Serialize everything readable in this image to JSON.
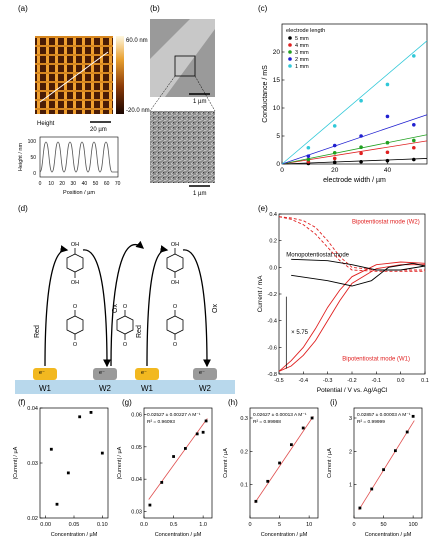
{
  "panel_labels": {
    "a": "(a)",
    "b": "(b)",
    "c": "(c)",
    "d": "(d)",
    "e": "(e)",
    "f": "(f)",
    "g": "(g)",
    "h": "(h)",
    "i": "(i)"
  },
  "panel_a": {
    "image_caption": "Height",
    "scale_bar": "20 µm",
    "colorbar_max": "60.0 nm",
    "colorbar_min": "-20.0 nm",
    "profile_ylabel": "Height / nm",
    "profile_xlabel": "Position / µm",
    "profile_yticks": [
      "0",
      "50",
      "100"
    ],
    "profile_xticks": [
      "0",
      "10",
      "20",
      "30",
      "40",
      "50",
      "60",
      "70"
    ]
  },
  "panel_b": {
    "scale_bar_top": "1 µm",
    "scale_bar_bottom": "1 µm"
  },
  "panel_d": {
    "electrodes": [
      "W1",
      "W2",
      "W1",
      "W2"
    ],
    "red_label": "Red",
    "ox_label": "Ox",
    "electron": "e⁻",
    "molecule_top": "OH",
    "molecule_bottom": "OH",
    "quinone": "O"
  },
  "chart_data": [
    {
      "id": "c",
      "type": "scatter",
      "xlabel": "electrode width / µm",
      "ylabel": "Conductance / mS",
      "xlim": [
        0,
        55
      ],
      "ylim": [
        0,
        25
      ],
      "xticks": [
        0,
        20,
        40
      ],
      "yticks": [
        0,
        5,
        10,
        15,
        20
      ],
      "legend_title": "electrode length",
      "legend_position": "top-left",
      "series": [
        {
          "name": "5 mm",
          "color": "#000000",
          "x": [
            10,
            20,
            30,
            40,
            50
          ],
          "y": [
            0.1,
            0.3,
            0.4,
            0.6,
            0.8
          ]
        },
        {
          "name": "4 mm",
          "color": "#e02020",
          "x": [
            10,
            20,
            30,
            40,
            50
          ],
          "y": [
            0.4,
            1.0,
            1.9,
            2.1,
            2.9
          ]
        },
        {
          "name": "3 mm",
          "color": "#20a020",
          "x": [
            10,
            20,
            30,
            40,
            50
          ],
          "y": [
            0.8,
            2.0,
            3.0,
            3.8,
            4.2
          ]
        },
        {
          "name": "2 mm",
          "color": "#2020d0",
          "x": [
            10,
            20,
            30,
            40,
            50
          ],
          "y": [
            1.4,
            3.3,
            5.0,
            8.5,
            7.0
          ]
        },
        {
          "name": "1 mm",
          "color": "#30c8d8",
          "x": [
            10,
            20,
            30,
            40,
            50
          ],
          "y": [
            2.9,
            6.8,
            11.3,
            14.2,
            19.3
          ]
        }
      ],
      "fit_slopes": [
        0.018,
        0.075,
        0.095,
        0.16,
        0.4
      ]
    },
    {
      "id": "e",
      "type": "line",
      "xlabel": "Potential / V vs. Ag/AgCl",
      "ylabel": "Current / mA",
      "xlim": [
        -0.5,
        0.1
      ],
      "ylim": [
        -0.8,
        0.4
      ],
      "xticks": [
        -0.5,
        -0.4,
        -0.3,
        -0.2,
        -0.1,
        0.0,
        0.1
      ],
      "yticks": [
        0.4,
        0.2,
        0.0,
        -0.2,
        -0.4,
        -0.6,
        -0.8
      ],
      "annotations": {
        "w2": "Bipotentiostat mode (W2)",
        "mono": "Monopotentiostat mode",
        "w1": "Bipotentiostat mode (W1)",
        "scale": "× 5.75"
      }
    },
    {
      "id": "f",
      "type": "scatter",
      "xlabel": "Concentration / µM",
      "ylabel": "|Current| / µA",
      "xlim": [
        -0.01,
        0.11
      ],
      "ylim": [
        0.02,
        0.04
      ],
      "xticks": [
        0,
        0.05,
        0.1
      ],
      "xtick_labels": [
        "0.00",
        "0.05",
        "0.10"
      ],
      "yticks": [
        0.02,
        0.03,
        0.04
      ],
      "x": [
        0.01,
        0.02,
        0.04,
        0.06,
        0.08,
        0.1
      ],
      "y": [
        0.0325,
        0.0225,
        0.0282,
        0.0384,
        0.0392,
        0.0318
      ]
    },
    {
      "id": "g",
      "type": "scatter",
      "xlabel": "Concentration / µM",
      "ylabel": "|Current| / µA",
      "xlim": [
        0,
        1.15
      ],
      "ylim": [
        0.028,
        0.062
      ],
      "xticks": [
        0,
        0.5,
        1.0
      ],
      "xtick_labels": [
        "0.0",
        "0.5",
        "1.0"
      ],
      "yticks": [
        0.03,
        0.04,
        0.05,
        0.06
      ],
      "x": [
        0.1,
        0.3,
        0.5,
        0.7,
        0.9,
        1.0,
        1.05
      ],
      "y": [
        0.032,
        0.039,
        0.047,
        0.0495,
        0.054,
        0.0545,
        0.058
      ],
      "fit": {
        "slope": 0.02527,
        "intercept": 0.0317
      },
      "annotation_line1": "0.02527 ± 0.00227 A M⁻¹",
      "annotation_line2": "R² = 0.96093"
    },
    {
      "id": "h",
      "type": "scatter",
      "xlabel": "Concentration / µM",
      "ylabel": "Current / µA",
      "xlim": [
        0,
        11.5
      ],
      "ylim": [
        0,
        0.33
      ],
      "xticks": [
        0,
        5,
        10
      ],
      "xtick_labels": [
        "0",
        "5",
        "10"
      ],
      "yticks": [
        0.1,
        0.2,
        0.3
      ],
      "x": [
        1,
        3,
        5,
        7,
        9,
        10.5
      ],
      "y": [
        0.05,
        0.11,
        0.165,
        0.22,
        0.27,
        0.3
      ],
      "fit": {
        "slope": 0.02627,
        "intercept": 0.024
      },
      "annotation_line1": "0.02627 ± 0.00013 A M⁻¹",
      "annotation_line2": "R² = 0.99988"
    },
    {
      "id": "i",
      "type": "scatter",
      "xlabel": "Concentration / µM",
      "ylabel": "Current / µA",
      "xlim": [
        0,
        115
      ],
      "ylim": [
        0,
        3.3
      ],
      "xticks": [
        0,
        50,
        100
      ],
      "xtick_labels": [
        "0",
        "50",
        "100"
      ],
      "yticks": [
        1,
        2,
        3
      ],
      "x": [
        10,
        30,
        50,
        70,
        90,
        100
      ],
      "y": [
        0.3,
        0.87,
        1.45,
        2.02,
        2.58,
        3.05
      ],
      "fit": {
        "slope": 0.02857,
        "intercept": 0.01
      },
      "annotation_line1": "0.02857 ± 0.00003 A M⁻¹",
      "annotation_line2": "R² = 0.99999"
    }
  ]
}
